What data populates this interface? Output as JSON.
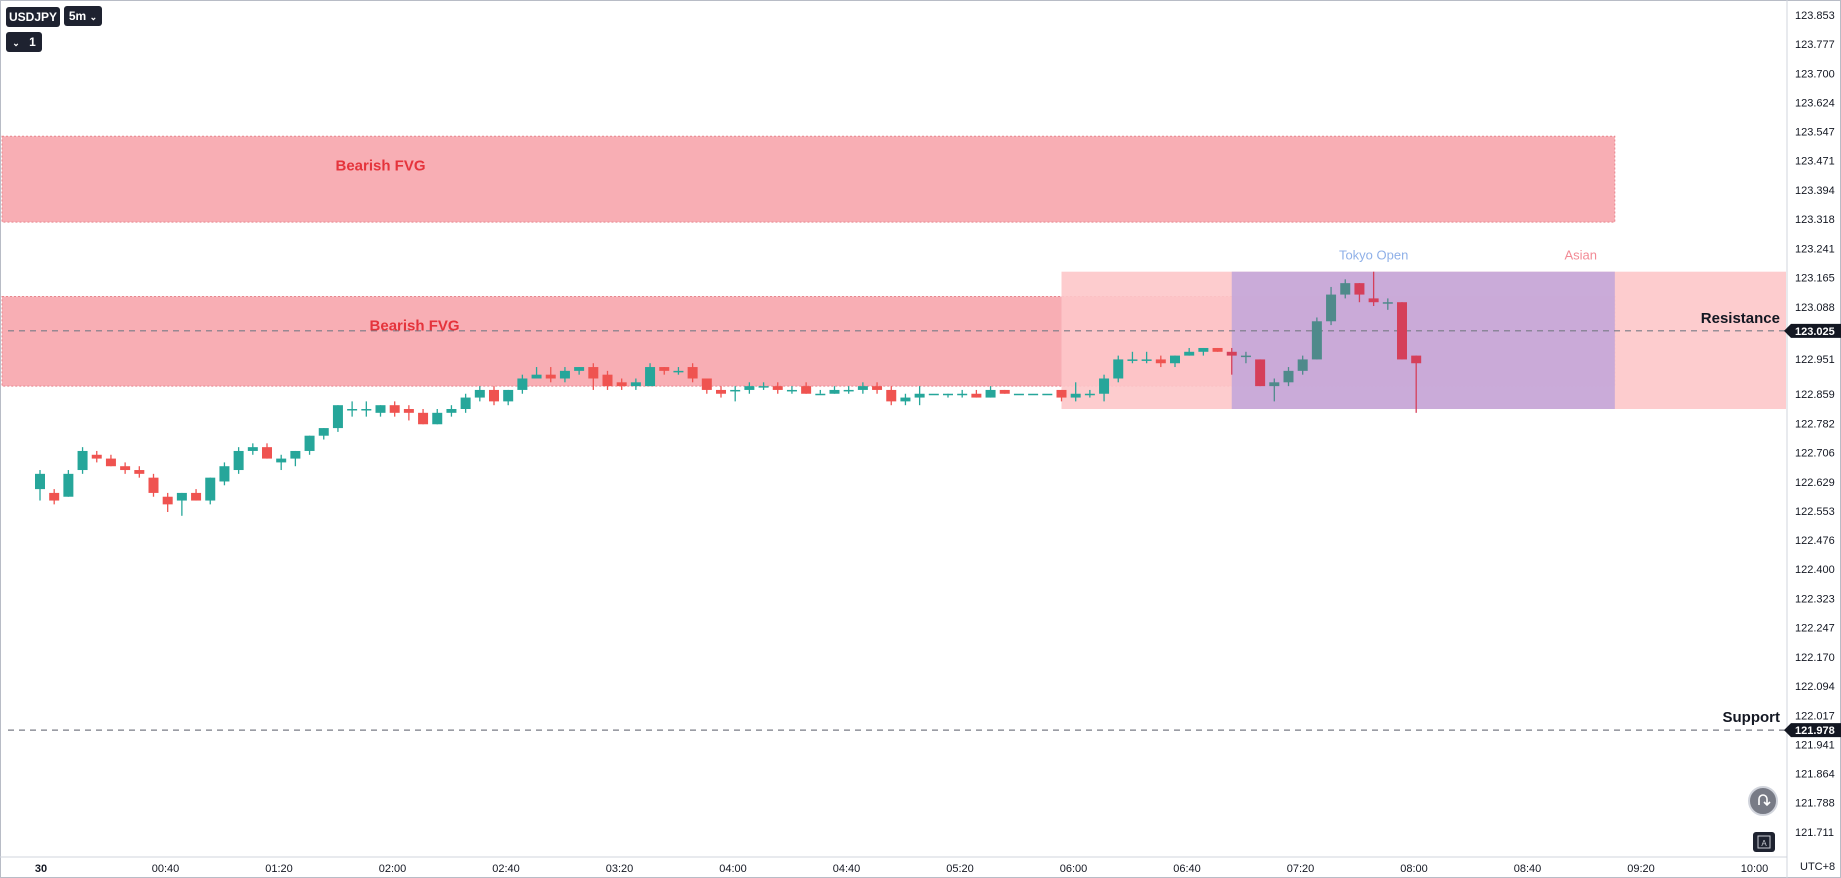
{
  "toolbar": {
    "symbol": "USDJPY",
    "interval": "5m",
    "indicator_count": "1",
    "timezone": "UTC+8"
  },
  "chart_data": {
    "type": "candlestick",
    "symbol": "USDJPY",
    "interval": "5m",
    "y_axis": {
      "ticks": [
        123.853,
        123.777,
        123.7,
        123.624,
        123.547,
        123.471,
        123.394,
        123.318,
        123.241,
        123.165,
        123.088,
        123.025,
        122.951,
        122.859,
        122.782,
        122.706,
        122.629,
        122.553,
        122.476,
        122.4,
        122.323,
        122.247,
        122.17,
        122.094,
        122.017,
        121.978,
        121.941,
        121.864,
        121.788,
        121.711
      ],
      "tick_labels": [
        "123.853",
        "123.777",
        "123.700",
        "123.624",
        "123.547",
        "123.471",
        "123.394",
        "123.318",
        "123.241",
        "123.165",
        "123.088",
        "123.025",
        "122.951",
        "122.859",
        "122.782",
        "122.706",
        "122.629",
        "122.553",
        "122.476",
        "122.400",
        "122.323",
        "122.247",
        "122.170",
        "122.094",
        "122.017",
        "121.978",
        "121.941",
        "121.864",
        "121.788",
        "121.711"
      ],
      "range": [
        121.68,
        123.9
      ]
    },
    "x_axis": {
      "tick_labels": [
        "30",
        "00:40",
        "01:20",
        "02:00",
        "02:40",
        "03:20",
        "04:00",
        "04:40",
        "05:20",
        "06:00",
        "06:40",
        "07:20",
        "08:00",
        "08:40",
        "09:20",
        "10:00"
      ],
      "tick_minutes": [
        0,
        40,
        80,
        120,
        160,
        200,
        240,
        280,
        320,
        360,
        400,
        440,
        480,
        520,
        560,
        600
      ]
    },
    "candles": [
      {
        "t": 0,
        "o": 122.61,
        "h": 122.66,
        "l": 122.58,
        "c": 122.65
      },
      {
        "t": 5,
        "o": 122.6,
        "h": 122.61,
        "l": 122.57,
        "c": 122.58
      },
      {
        "t": 10,
        "o": 122.59,
        "h": 122.66,
        "l": 122.59,
        "c": 122.65
      },
      {
        "t": 15,
        "o": 122.66,
        "h": 122.72,
        "l": 122.65,
        "c": 122.71
      },
      {
        "t": 20,
        "o": 122.7,
        "h": 122.71,
        "l": 122.68,
        "c": 122.69
      },
      {
        "t": 25,
        "o": 122.69,
        "h": 122.7,
        "l": 122.67,
        "c": 122.67
      },
      {
        "t": 30,
        "o": 122.67,
        "h": 122.68,
        "l": 122.65,
        "c": 122.66
      },
      {
        "t": 35,
        "o": 122.66,
        "h": 122.67,
        "l": 122.64,
        "c": 122.65
      },
      {
        "t": 40,
        "o": 122.64,
        "h": 122.65,
        "l": 122.59,
        "c": 122.6
      },
      {
        "t": 45,
        "o": 122.59,
        "h": 122.6,
        "l": 122.55,
        "c": 122.57
      },
      {
        "t": 50,
        "o": 122.58,
        "h": 122.6,
        "l": 122.54,
        "c": 122.6
      },
      {
        "t": 55,
        "o": 122.6,
        "h": 122.61,
        "l": 122.58,
        "c": 122.58
      },
      {
        "t": 60,
        "o": 122.58,
        "h": 122.64,
        "l": 122.57,
        "c": 122.64
      },
      {
        "t": 65,
        "o": 122.63,
        "h": 122.68,
        "l": 122.62,
        "c": 122.67
      },
      {
        "t": 70,
        "o": 122.66,
        "h": 122.72,
        "l": 122.65,
        "c": 122.71
      },
      {
        "t": 75,
        "o": 122.71,
        "h": 122.73,
        "l": 122.7,
        "c": 122.72
      },
      {
        "t": 80,
        "o": 122.72,
        "h": 122.73,
        "l": 122.69,
        "c": 122.69
      },
      {
        "t": 85,
        "o": 122.68,
        "h": 122.7,
        "l": 122.66,
        "c": 122.69
      },
      {
        "t": 90,
        "o": 122.69,
        "h": 122.71,
        "l": 122.67,
        "c": 122.71
      },
      {
        "t": 95,
        "o": 122.71,
        "h": 122.75,
        "l": 122.7,
        "c": 122.75
      },
      {
        "t": 100,
        "o": 122.75,
        "h": 122.77,
        "l": 122.74,
        "c": 122.77
      },
      {
        "t": 105,
        "o": 122.77,
        "h": 122.83,
        "l": 122.76,
        "c": 122.83
      },
      {
        "t": 110,
        "o": 122.82,
        "h": 122.84,
        "l": 122.8,
        "c": 122.82
      },
      {
        "t": 115,
        "o": 122.82,
        "h": 122.84,
        "l": 122.8,
        "c": 122.82
      },
      {
        "t": 120,
        "o": 122.81,
        "h": 122.83,
        "l": 122.8,
        "c": 122.83
      },
      {
        "t": 125,
        "o": 122.83,
        "h": 122.84,
        "l": 122.8,
        "c": 122.81
      },
      {
        "t": 130,
        "o": 122.82,
        "h": 122.83,
        "l": 122.79,
        "c": 122.81
      },
      {
        "t": 135,
        "o": 122.81,
        "h": 122.82,
        "l": 122.78,
        "c": 122.78
      },
      {
        "t": 140,
        "o": 122.78,
        "h": 122.82,
        "l": 122.78,
        "c": 122.81
      },
      {
        "t": 145,
        "o": 122.81,
        "h": 122.83,
        "l": 122.8,
        "c": 122.82
      },
      {
        "t": 150,
        "o": 122.82,
        "h": 122.86,
        "l": 122.81,
        "c": 122.85
      },
      {
        "t": 155,
        "o": 122.85,
        "h": 122.88,
        "l": 122.84,
        "c": 122.87
      },
      {
        "t": 160,
        "o": 122.87,
        "h": 122.88,
        "l": 122.83,
        "c": 122.84
      },
      {
        "t": 165,
        "o": 122.84,
        "h": 122.87,
        "l": 122.83,
        "c": 122.87
      },
      {
        "t": 170,
        "o": 122.87,
        "h": 122.91,
        "l": 122.86,
        "c": 122.9
      },
      {
        "t": 175,
        "o": 122.9,
        "h": 122.93,
        "l": 122.9,
        "c": 122.91
      },
      {
        "t": 180,
        "o": 122.91,
        "h": 122.93,
        "l": 122.89,
        "c": 122.9
      },
      {
        "t": 185,
        "o": 122.9,
        "h": 122.93,
        "l": 122.89,
        "c": 122.92
      },
      {
        "t": 190,
        "o": 122.92,
        "h": 122.93,
        "l": 122.91,
        "c": 122.93
      },
      {
        "t": 195,
        "o": 122.93,
        "h": 122.94,
        "l": 122.87,
        "c": 122.9
      },
      {
        "t": 200,
        "o": 122.91,
        "h": 122.92,
        "l": 122.87,
        "c": 122.88
      },
      {
        "t": 205,
        "o": 122.89,
        "h": 122.9,
        "l": 122.87,
        "c": 122.88
      },
      {
        "t": 210,
        "o": 122.88,
        "h": 122.9,
        "l": 122.87,
        "c": 122.89
      },
      {
        "t": 215,
        "o": 122.88,
        "h": 122.94,
        "l": 122.88,
        "c": 122.93
      },
      {
        "t": 220,
        "o": 122.93,
        "h": 122.93,
        "l": 122.91,
        "c": 122.92
      },
      {
        "t": 225,
        "o": 122.92,
        "h": 122.93,
        "l": 122.91,
        "c": 122.92
      },
      {
        "t": 230,
        "o": 122.93,
        "h": 122.94,
        "l": 122.89,
        "c": 122.9
      },
      {
        "t": 235,
        "o": 122.9,
        "h": 122.9,
        "l": 122.86,
        "c": 122.87
      },
      {
        "t": 240,
        "o": 122.87,
        "h": 122.88,
        "l": 122.85,
        "c": 122.86
      },
      {
        "t": 245,
        "o": 122.87,
        "h": 122.88,
        "l": 122.84,
        "c": 122.87
      },
      {
        "t": 250,
        "o": 122.87,
        "h": 122.89,
        "l": 122.86,
        "c": 122.88
      },
      {
        "t": 255,
        "o": 122.88,
        "h": 122.89,
        "l": 122.87,
        "c": 122.88
      },
      {
        "t": 260,
        "o": 122.88,
        "h": 122.89,
        "l": 122.86,
        "c": 122.87
      },
      {
        "t": 265,
        "o": 122.87,
        "h": 122.88,
        "l": 122.86,
        "c": 122.87
      },
      {
        "t": 270,
        "o": 122.88,
        "h": 122.89,
        "l": 122.86,
        "c": 122.86
      },
      {
        "t": 275,
        "o": 122.86,
        "h": 122.87,
        "l": 122.86,
        "c": 122.86
      },
      {
        "t": 280,
        "o": 122.86,
        "h": 122.88,
        "l": 122.86,
        "c": 122.87
      },
      {
        "t": 285,
        "o": 122.87,
        "h": 122.88,
        "l": 122.86,
        "c": 122.87
      },
      {
        "t": 290,
        "o": 122.87,
        "h": 122.89,
        "l": 122.86,
        "c": 122.88
      },
      {
        "t": 295,
        "o": 122.88,
        "h": 122.89,
        "l": 122.86,
        "c": 122.87
      },
      {
        "t": 300,
        "o": 122.87,
        "h": 122.88,
        "l": 122.83,
        "c": 122.84
      },
      {
        "t": 305,
        "o": 122.84,
        "h": 122.86,
        "l": 122.83,
        "c": 122.85
      },
      {
        "t": 310,
        "o": 122.85,
        "h": 122.88,
        "l": 122.83,
        "c": 122.86
      },
      {
        "t": 315,
        "o": 122.86,
        "h": 122.86,
        "l": 122.86,
        "c": 122.86
      },
      {
        "t": 320,
        "o": 122.86,
        "h": 122.86,
        "l": 122.85,
        "c": 122.86
      },
      {
        "t": 325,
        "o": 122.86,
        "h": 122.87,
        "l": 122.85,
        "c": 122.86
      },
      {
        "t": 330,
        "o": 122.86,
        "h": 122.87,
        "l": 122.85,
        "c": 122.85
      },
      {
        "t": 335,
        "o": 122.85,
        "h": 122.88,
        "l": 122.85,
        "c": 122.87
      },
      {
        "t": 340,
        "o": 122.87,
        "h": 122.87,
        "l": 122.86,
        "c": 122.86
      },
      {
        "t": 345,
        "o": 122.86,
        "h": 122.86,
        "l": 122.86,
        "c": 122.86
      },
      {
        "t": 350,
        "o": 122.86,
        "h": 122.86,
        "l": 122.86,
        "c": 122.86
      },
      {
        "t": 355,
        "o": 122.86,
        "h": 122.86,
        "l": 122.86,
        "c": 122.86
      },
      {
        "t": 360,
        "o": 122.87,
        "h": 122.87,
        "l": 122.84,
        "c": 122.85
      },
      {
        "t": 365,
        "o": 122.85,
        "h": 122.89,
        "l": 122.84,
        "c": 122.86
      },
      {
        "t": 370,
        "o": 122.86,
        "h": 122.87,
        "l": 122.85,
        "c": 122.86
      },
      {
        "t": 375,
        "o": 122.86,
        "h": 122.91,
        "l": 122.84,
        "c": 122.9
      },
      {
        "t": 380,
        "o": 122.9,
        "h": 122.96,
        "l": 122.89,
        "c": 122.95
      },
      {
        "t": 385,
        "o": 122.95,
        "h": 122.97,
        "l": 122.94,
        "c": 122.95
      },
      {
        "t": 390,
        "o": 122.95,
        "h": 122.97,
        "l": 122.94,
        "c": 122.95
      },
      {
        "t": 395,
        "o": 122.95,
        "h": 122.96,
        "l": 122.93,
        "c": 122.94
      },
      {
        "t": 400,
        "o": 122.94,
        "h": 122.96,
        "l": 122.93,
        "c": 122.96
      },
      {
        "t": 405,
        "o": 122.96,
        "h": 122.98,
        "l": 122.96,
        "c": 122.97
      },
      {
        "t": 410,
        "o": 122.97,
        "h": 122.98,
        "l": 122.96,
        "c": 122.98
      },
      {
        "t": 415,
        "o": 122.98,
        "h": 122.98,
        "l": 122.97,
        "c": 122.97
      },
      {
        "t": 420,
        "o": 122.97,
        "h": 122.98,
        "l": 122.91,
        "c": 122.96
      },
      {
        "t": 425,
        "o": 122.96,
        "h": 122.97,
        "l": 122.94,
        "c": 122.96
      },
      {
        "t": 430,
        "o": 122.95,
        "h": 122.95,
        "l": 122.88,
        "c": 122.88
      },
      {
        "t": 435,
        "o": 122.88,
        "h": 122.9,
        "l": 122.84,
        "c": 122.89
      },
      {
        "t": 440,
        "o": 122.89,
        "h": 122.93,
        "l": 122.88,
        "c": 122.92
      },
      {
        "t": 445,
        "o": 122.92,
        "h": 122.96,
        "l": 122.91,
        "c": 122.95
      },
      {
        "t": 450,
        "o": 122.95,
        "h": 123.06,
        "l": 122.95,
        "c": 123.05
      },
      {
        "t": 455,
        "o": 123.05,
        "h": 123.14,
        "l": 123.04,
        "c": 123.12
      },
      {
        "t": 460,
        "o": 123.12,
        "h": 123.16,
        "l": 123.11,
        "c": 123.15
      },
      {
        "t": 465,
        "o": 123.15,
        "h": 123.15,
        "l": 123.1,
        "c": 123.12
      },
      {
        "t": 470,
        "o": 123.11,
        "h": 123.18,
        "l": 123.09,
        "c": 123.1
      },
      {
        "t": 475,
        "o": 123.1,
        "h": 123.11,
        "l": 123.08,
        "c": 123.1
      },
      {
        "t": 480,
        "o": 123.1,
        "h": 123.1,
        "l": 122.95,
        "c": 122.95
      },
      {
        "t": 485,
        "o": 122.96,
        "h": 122.96,
        "l": 122.81,
        "c": 122.94
      }
    ],
    "zones": [
      {
        "label": "Bearish FVG",
        "from_t": -5,
        "to_t": 555,
        "high": 123.535,
        "low": 123.31
      },
      {
        "label": "Bearish FVG",
        "from_t": -5,
        "to_t": 555,
        "high": 123.115,
        "low": 122.88
      }
    ],
    "sessions": [
      {
        "label": "Asian",
        "from_t": 360,
        "to_t": 555,
        "high": 123.18,
        "low": 122.82,
        "extends_to_axis": true
      },
      {
        "label": "Tokyo Open",
        "from_t": 420,
        "to_t": 555,
        "high": 123.18,
        "low": 122.82
      }
    ],
    "levels": [
      {
        "label": "Resistance",
        "price": 123.025,
        "price_label": "123.025"
      },
      {
        "label": "Support",
        "price": 121.978,
        "price_label": "121.978"
      }
    ],
    "colors": {
      "up": "#26a69a",
      "down": "#ef5350",
      "in_zone_up": "#4f8a8b",
      "in_zone_down": "#d53f5a",
      "fvg_fill": "#f7a1a8",
      "fvg_border": "#e5707a",
      "fvg_label": "#e5343c",
      "asian_fill": "#fdc6c9",
      "tokyo_fill": "#c7a9d9",
      "tokyo_label": "#8fb0e8",
      "asian_label": "#f28a95",
      "level_line": "#787b86",
      "axis_text": "#131722",
      "price_tag": "#131722"
    }
  }
}
